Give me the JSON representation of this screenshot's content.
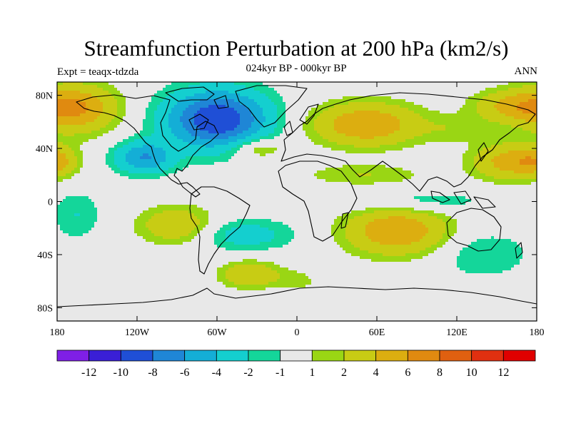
{
  "title": "Streamfunction Perturbation at 200 hPa (km2/s)",
  "subtitle": "024kyr BP - 000kyr BP",
  "left_label": "Expt = teaqx-tdzda",
  "right_label": "ANN",
  "lat_ticks": [
    {
      "value": 80,
      "label": "80N"
    },
    {
      "value": 40,
      "label": "40N"
    },
    {
      "value": 0,
      "label": "0"
    },
    {
      "value": -40,
      "label": "40S"
    },
    {
      "value": -80,
      "label": "80S"
    }
  ],
  "lon_ticks": [
    {
      "value": -180,
      "label": "180"
    },
    {
      "value": -120,
      "label": "120W"
    },
    {
      "value": -60,
      "label": "60W"
    },
    {
      "value": 0,
      "label": "0"
    },
    {
      "value": 60,
      "label": "60E"
    },
    {
      "value": 120,
      "label": "120E"
    },
    {
      "value": 180,
      "label": "180"
    }
  ],
  "colorbar": {
    "colors": [
      "#7f1fe6",
      "#3a1fd6",
      "#1f4fd6",
      "#1f86d6",
      "#14aed6",
      "#14cfcf",
      "#14d69a",
      "#e8e8e8",
      "#9ad614",
      "#c8cc14",
      "#dcae10",
      "#e08a10",
      "#e06010",
      "#e03010",
      "#e00000"
    ],
    "labels": [
      "-12",
      "-10",
      "-8",
      "-6",
      "-4",
      "-2",
      "-1",
      "1",
      "2",
      "4",
      "6",
      "8",
      "10",
      "12"
    ]
  },
  "chart_data": {
    "type": "heatmap",
    "title": "Streamfunction Perturbation at 200 hPa (km2/s)",
    "subtitle": "024kyr BP - 000kyr BP",
    "experiment": "Expt = teaqx-tdzda",
    "season": "ANN",
    "xlim": [
      -180,
      180
    ],
    "ylim": [
      -90,
      90
    ],
    "levels": [
      -12,
      -10,
      -8,
      -6,
      -4,
      -2,
      -1,
      1,
      2,
      4,
      6,
      8,
      10,
      12
    ],
    "blobs": [
      {
        "lon": -60,
        "lat": 62,
        "rlon": 38,
        "rlat": 22,
        "amp": -10
      },
      {
        "lon": -115,
        "lat": 33,
        "rlon": 22,
        "rlat": 12,
        "amp": -6
      },
      {
        "lon": -165,
        "lat": 70,
        "rlon": 30,
        "rlat": 18,
        "amp": 6
      },
      {
        "lon": -180,
        "lat": 30,
        "rlon": 14,
        "rlat": 10,
        "amp": 3
      },
      {
        "lon": 52,
        "lat": 58,
        "rlon": 40,
        "rlat": 16,
        "amp": 6
      },
      {
        "lon": 160,
        "lat": 72,
        "rlon": 28,
        "rlat": 12,
        "amp": 4
      },
      {
        "lon": 160,
        "lat": 30,
        "rlon": 28,
        "rlat": 14,
        "amp": 5
      },
      {
        "lon": -30,
        "lat": 40,
        "rlon": 20,
        "rlat": 8,
        "amp": 3
      },
      {
        "lon": 50,
        "lat": 20,
        "rlon": 45,
        "rlat": 8,
        "amp": 2
      },
      {
        "lon": 90,
        "lat": 0,
        "rlon": 55,
        "rlat": 9,
        "amp": -2
      },
      {
        "lon": -90,
        "lat": -18,
        "rlon": 28,
        "rlat": 14,
        "amp": 4
      },
      {
        "lon": -165,
        "lat": -10,
        "rlon": 18,
        "rlat": 18,
        "amp": -2
      },
      {
        "lon": -40,
        "lat": -25,
        "rlon": 38,
        "rlat": 12,
        "amp": -3
      },
      {
        "lon": 75,
        "lat": -22,
        "rlon": 38,
        "rlat": 18,
        "amp": 6
      },
      {
        "lon": 140,
        "lat": -40,
        "rlon": 35,
        "rlat": 18,
        "amp": -2
      },
      {
        "lon": -35,
        "lat": -55,
        "rlon": 22,
        "rlat": 10,
        "amp": 4
      },
      {
        "lon": 0,
        "lat": -60,
        "rlon": 15,
        "rlat": 8,
        "amp": 1.5
      },
      {
        "lon": 120,
        "lat": 55,
        "rlon": 25,
        "rlat": 10,
        "amp": 1.5
      }
    ]
  }
}
